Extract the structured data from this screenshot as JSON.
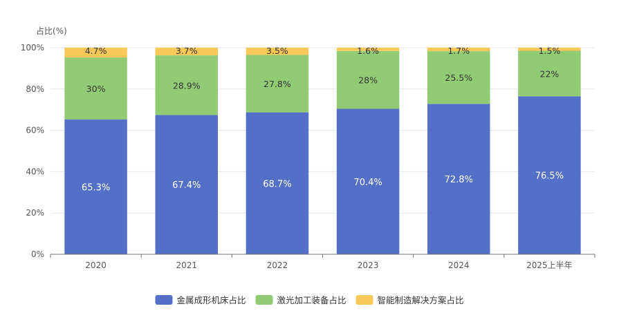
{
  "chart_data": {
    "type": "bar",
    "stacked": true,
    "ylabel": "占比(%)",
    "ylim": [
      0,
      100
    ],
    "yticks": [
      "0%",
      "20%",
      "40%",
      "60%",
      "80%",
      "100%"
    ],
    "ytick_values": [
      0,
      20,
      40,
      60,
      80,
      100
    ],
    "grid": true,
    "legend_position": "bottom-center",
    "categories": [
      "2020",
      "2021",
      "2022",
      "2023",
      "2024",
      "2025上半年"
    ],
    "series": [
      {
        "name": "金属成形机床占比",
        "color": "#5470c6",
        "values": [
          65.3,
          67.4,
          68.7,
          70.4,
          72.8,
          76.5
        ],
        "labels": [
          "65.3%",
          "67.4%",
          "68.7%",
          "70.4%",
          "72.8%",
          "76.5%"
        ]
      },
      {
        "name": "激光加工装备占比",
        "color": "#91cc75",
        "values": [
          30,
          28.9,
          27.8,
          28,
          25.5,
          22
        ],
        "labels": [
          "30%",
          "28.9%",
          "27.8%",
          "28%",
          "25.5%",
          "22%"
        ]
      },
      {
        "name": "智能制造解决方案占比",
        "color": "#fac858",
        "values": [
          4.7,
          3.7,
          3.5,
          1.6,
          1.7,
          1.5
        ],
        "labels": [
          "4.7%",
          "3.7%",
          "3.5%",
          "1.6%",
          "1.7%",
          "1.5%"
        ]
      }
    ]
  }
}
